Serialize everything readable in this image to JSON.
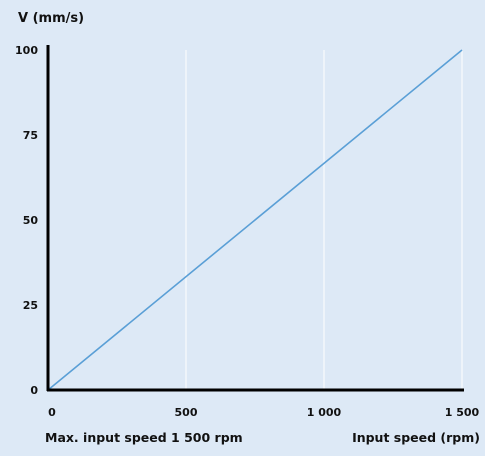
{
  "chart_data": {
    "type": "line",
    "title": "",
    "ylabel": "V (mm/s)",
    "xlabel": "Input speed (rpm)",
    "annotation": "Max. input speed 1 500 rpm",
    "xlim": [
      0,
      1500
    ],
    "ylim": [
      0,
      100
    ],
    "x_ticks": [
      0,
      500,
      1000,
      1500
    ],
    "x_tick_labels": [
      "0",
      "500",
      "1 000",
      "1 500"
    ],
    "y_ticks": [
      0,
      25,
      50,
      75,
      100
    ],
    "y_tick_labels": [
      "0",
      "25",
      "50",
      "75",
      "100"
    ],
    "grid": "vertical",
    "series": [
      {
        "x": [
          0,
          1500
        ],
        "y": [
          0,
          100
        ],
        "color": "#5a9fd6"
      }
    ],
    "colors": {
      "background": "#dde9f6",
      "grid": "#ffffff",
      "axis": "#000000"
    }
  }
}
